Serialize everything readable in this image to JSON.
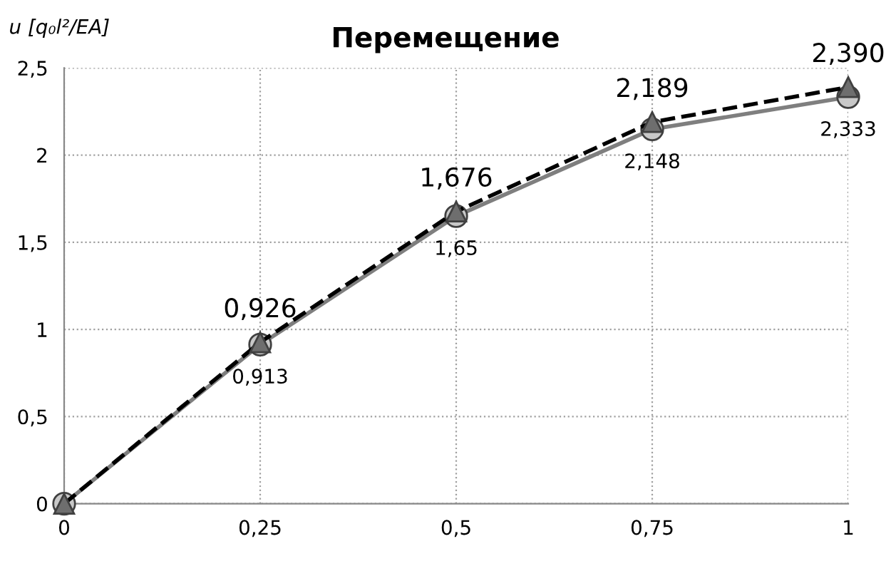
{
  "chart_data": {
    "type": "line",
    "title": "Перемещение",
    "ylabel": "u [q₀l²/EA]",
    "x": [
      0,
      0.25,
      0.5,
      0.75,
      1
    ],
    "series": [
      {
        "color": "#7f7f7f",
        "values": [
          0,
          0.913,
          1.65,
          2.148,
          2.333
        ],
        "marker": "circle",
        "line_style": "solid",
        "value_labels": [
          null,
          "0,913",
          "1,65",
          "2,148",
          "2,333"
        ]
      },
      {
        "color": "#000000",
        "values": [
          0,
          0.926,
          1.676,
          2.189,
          2.39
        ],
        "marker": "triangle",
        "line_style": "dashed",
        "value_labels": [
          null,
          "0,926",
          "1,676",
          "2,189",
          "2,390"
        ]
      }
    ],
    "xlim": [
      0,
      1
    ],
    "xticks": [
      0,
      {
        "value": 0.25,
        "label": "0,25"
      },
      {
        "value": 0.5,
        "label": "0,5"
      },
      {
        "value": 0.75,
        "label": "0,75"
      },
      1
    ],
    "ylim": [
      0,
      2.5
    ],
    "yticks": [
      0,
      {
        "value": 0.5,
        "label": "0,5"
      },
      1,
      {
        "value": 1.5,
        "label": "1,5"
      },
      2,
      {
        "value": 2.5,
        "label": "2,5"
      }
    ],
    "grid": true,
    "legend": false
  }
}
